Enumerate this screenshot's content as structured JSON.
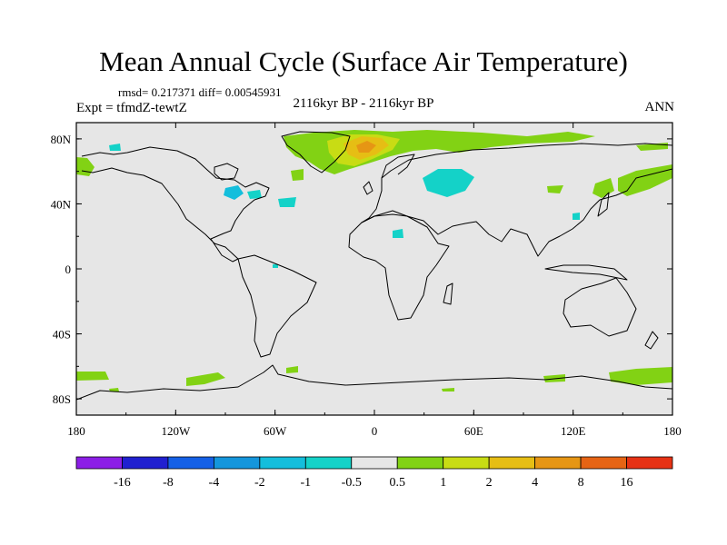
{
  "title": "Mean Annual Cycle (Surface Air Temperature)",
  "stats_line": "rmsd= 0.217371 diff= 0.00545931",
  "experiment_label": "Expt = tfmdZ-tewtZ",
  "period_label": "2116kyr BP - 2116kyr BP",
  "season_label": "ANN",
  "map": {
    "projection": "cylindrical-equidistant",
    "lon_range": [
      -180,
      180
    ],
    "lat_range": [
      -90,
      90
    ],
    "x_ticks": [
      {
        "lon": -180,
        "label": "180"
      },
      {
        "lon": -120,
        "label": "120W"
      },
      {
        "lon": -60,
        "label": "60W"
      },
      {
        "lon": 0,
        "label": "0"
      },
      {
        "lon": 60,
        "label": "60E"
      },
      {
        "lon": 120,
        "label": "120E"
      },
      {
        "lon": 180,
        "label": "180"
      }
    ],
    "y_ticks": [
      {
        "lat": 80,
        "label": "80N"
      },
      {
        "lat": 40,
        "label": "40N"
      },
      {
        "lat": 0,
        "label": "0"
      },
      {
        "lat": -40,
        "label": "40S"
      },
      {
        "lat": -80,
        "label": "80S"
      }
    ],
    "background_color": "#e6e6e6",
    "coast_color": "#000000"
  },
  "colorbar": {
    "colors": [
      "#8c1ee6",
      "#2020d0",
      "#1460e6",
      "#1496dc",
      "#14bedc",
      "#14d2c8",
      "#e6e6e6",
      "#82d214",
      "#c8dc14",
      "#e6be14",
      "#e69614",
      "#e66414",
      "#e63214"
    ],
    "labels": [
      "-16",
      "-8",
      "-4",
      "-2",
      "-1",
      "-0.5",
      "0.5",
      "1",
      "2",
      "4",
      "8",
      "16"
    ]
  }
}
